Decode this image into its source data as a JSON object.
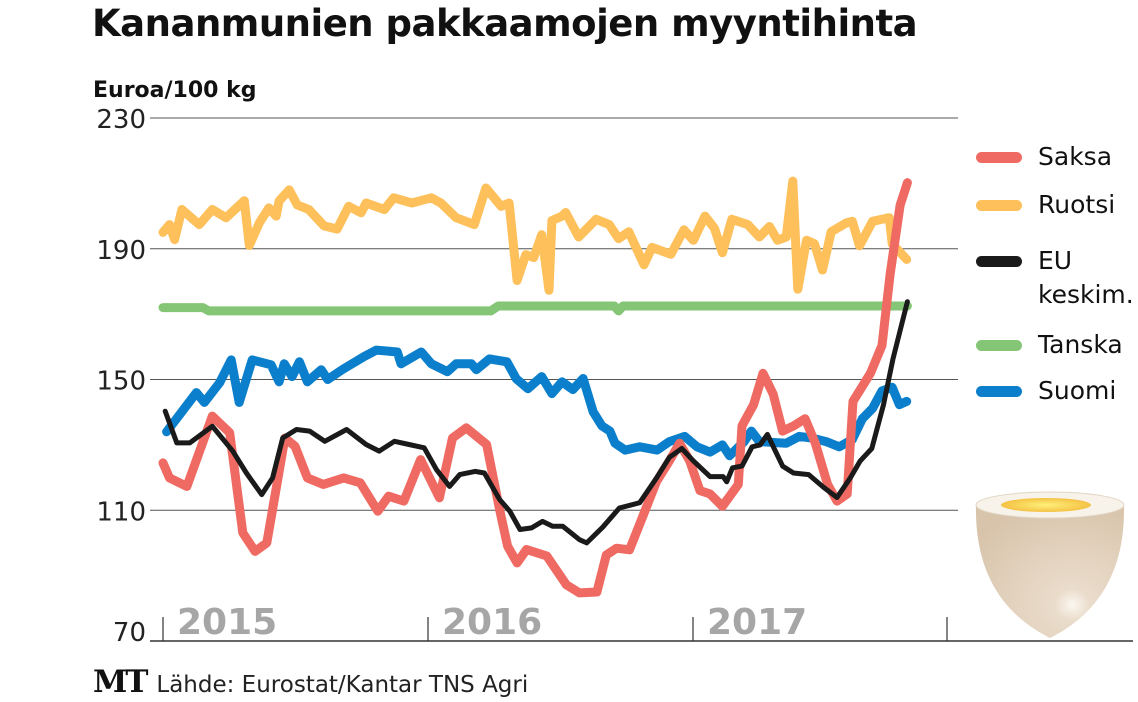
{
  "chart_data": {
    "type": "line",
    "title": "Kananmunien pakkaamojen myyntihinta",
    "ylabel": "Euroa/100 kg",
    "xlabel": "",
    "ylim": [
      70,
      230
    ],
    "yticks": [
      70,
      110,
      150,
      190,
      230
    ],
    "xlim": [
      "2015-01-01",
      "2018-01-01"
    ],
    "xtick_labels": [
      "2015",
      "2016",
      "2017"
    ],
    "grid": "horizontal",
    "legend_position": "right",
    "source": "Lähde: Eurostat/Kantar TNS Agri",
    "logo": "MT",
    "series": [
      {
        "name": "Tanska",
        "color": "#84c675",
        "points": [
          [
            "2015-01-01",
            172
          ],
          [
            "2015-02-25",
            172
          ],
          [
            "2015-03-05",
            171
          ],
          [
            "2016-03-28",
            171
          ],
          [
            "2016-04-07",
            172.5
          ],
          [
            "2016-09-14",
            172.5
          ],
          [
            "2016-09-20",
            171
          ],
          [
            "2016-09-26",
            172.5
          ],
          [
            "2017-10-23",
            172.5
          ]
        ]
      },
      {
        "name": "Ruotsi",
        "color": "#fdc05a",
        "points": [
          [
            "2015-01-01",
            195
          ],
          [
            "2015-01-10",
            197.4
          ],
          [
            "2015-01-17",
            192.8
          ],
          [
            "2015-01-27",
            202
          ],
          [
            "2015-02-20",
            197.4
          ],
          [
            "2015-03-10",
            202
          ],
          [
            "2015-03-29",
            199.5
          ],
          [
            "2015-04-23",
            204.7
          ],
          [
            "2015-04-30",
            191
          ],
          [
            "2015-05-14",
            198
          ],
          [
            "2015-05-27",
            202.5
          ],
          [
            "2015-06-06",
            200
          ],
          [
            "2015-06-10",
            204.6
          ],
          [
            "2015-06-24",
            208
          ],
          [
            "2015-07-05",
            203.4
          ],
          [
            "2015-07-21",
            202
          ],
          [
            "2015-08-11",
            197
          ],
          [
            "2015-08-29",
            196
          ],
          [
            "2015-09-14",
            203
          ],
          [
            "2015-10-01",
            201
          ],
          [
            "2015-10-08",
            204
          ],
          [
            "2015-11-02",
            202
          ],
          [
            "2015-11-15",
            205.6
          ],
          [
            "2015-12-10",
            204
          ],
          [
            "2016-01-06",
            205.6
          ],
          [
            "2016-01-19",
            204
          ],
          [
            "2016-02-09",
            199.5
          ],
          [
            "2016-03-05",
            197.4
          ],
          [
            "2016-03-21",
            208.6
          ],
          [
            "2016-04-11",
            203
          ],
          [
            "2016-04-22",
            204
          ],
          [
            "2016-05-03",
            180.3
          ],
          [
            "2016-05-15",
            188.2
          ],
          [
            "2016-05-26",
            187.3
          ],
          [
            "2016-06-06",
            194.3
          ],
          [
            "2016-06-16",
            177.3
          ],
          [
            "2016-06-20",
            198.6
          ],
          [
            "2016-07-04",
            200
          ],
          [
            "2016-07-09",
            201.1
          ],
          [
            "2016-07-27",
            193.6
          ],
          [
            "2016-08-20",
            199
          ],
          [
            "2016-09-07",
            197.4
          ],
          [
            "2016-09-20",
            193.1
          ],
          [
            "2016-10-04",
            195.2
          ],
          [
            "2016-10-25",
            185.1
          ],
          [
            "2016-11-05",
            190.4
          ],
          [
            "2016-12-01",
            188.3
          ],
          [
            "2016-12-19",
            195.8
          ],
          [
            "2017-01-01",
            192.6
          ],
          [
            "2017-01-17",
            200
          ],
          [
            "2017-01-30",
            196.3
          ],
          [
            "2017-02-10",
            188.8
          ],
          [
            "2017-02-23",
            199
          ],
          [
            "2017-03-17",
            197.4
          ],
          [
            "2017-04-02",
            193.6
          ],
          [
            "2017-04-16",
            196.8
          ],
          [
            "2017-04-27",
            192.6
          ],
          [
            "2017-05-09",
            193.6
          ],
          [
            "2017-05-18",
            210.7
          ],
          [
            "2017-05-25",
            177.6
          ],
          [
            "2017-06-06",
            192.6
          ],
          [
            "2017-06-17",
            191.5
          ],
          [
            "2017-06-28",
            183.5
          ],
          [
            "2017-07-10",
            195.2
          ],
          [
            "2017-07-31",
            197.9
          ],
          [
            "2017-08-08",
            198.4
          ],
          [
            "2017-08-18",
            190.9
          ],
          [
            "2017-09-05",
            198.4
          ],
          [
            "2017-09-28",
            199.5
          ],
          [
            "2017-10-02",
            191.5
          ],
          [
            "2017-10-22",
            186.7
          ]
        ]
      },
      {
        "name": "Suomi",
        "color": "#0b7fcc",
        "points": [
          [
            "2015-01-06",
            134
          ],
          [
            "2015-02-16",
            146
          ],
          [
            "2015-02-27",
            143
          ],
          [
            "2015-03-20",
            149
          ],
          [
            "2015-04-05",
            156
          ],
          [
            "2015-04-16",
            143
          ],
          [
            "2015-05-04",
            156
          ],
          [
            "2015-05-30",
            154.5
          ],
          [
            "2015-06-10",
            149.3
          ],
          [
            "2015-06-17",
            154.8
          ],
          [
            "2015-06-28",
            150.9
          ],
          [
            "2015-07-08",
            155.4
          ],
          [
            "2015-07-19",
            149.3
          ],
          [
            "2015-08-07",
            153
          ],
          [
            "2015-08-16",
            150
          ],
          [
            "2015-09-05",
            153
          ],
          [
            "2015-10-05",
            157
          ],
          [
            "2015-10-22",
            159
          ],
          [
            "2015-11-20",
            158.4
          ],
          [
            "2015-11-25",
            154.8
          ],
          [
            "2015-12-23",
            158.4
          ],
          [
            "2016-01-06",
            154.8
          ],
          [
            "2016-01-28",
            152.4
          ],
          [
            "2016-02-09",
            154.8
          ],
          [
            "2016-03-01",
            154.8
          ],
          [
            "2016-03-08",
            153
          ],
          [
            "2016-03-26",
            156.3
          ],
          [
            "2016-04-19",
            155.4
          ],
          [
            "2016-05-02",
            150.2
          ],
          [
            "2016-05-18",
            147.2
          ],
          [
            "2016-06-06",
            150.9
          ],
          [
            "2016-06-20",
            145.7
          ],
          [
            "2016-07-04",
            149.3
          ],
          [
            "2016-07-19",
            146.9
          ],
          [
            "2016-08-02",
            150.3
          ],
          [
            "2016-08-16",
            140.1
          ],
          [
            "2016-08-28",
            135.8
          ],
          [
            "2016-09-08",
            134.2
          ],
          [
            "2016-09-15",
            130.5
          ],
          [
            "2016-09-29",
            128.4
          ],
          [
            "2016-10-19",
            129.4
          ],
          [
            "2016-11-12",
            128.4
          ],
          [
            "2016-11-29",
            131
          ],
          [
            "2016-12-20",
            132.6
          ],
          [
            "2017-01-06",
            129.4
          ],
          [
            "2017-01-24",
            127.8
          ],
          [
            "2017-02-10",
            130
          ],
          [
            "2017-02-20",
            126.7
          ],
          [
            "2017-03-12",
            131
          ],
          [
            "2017-03-22",
            134.2
          ],
          [
            "2017-04-02",
            131
          ],
          [
            "2017-05-09",
            130.5
          ],
          [
            "2017-05-27",
            132.6
          ],
          [
            "2017-06-13",
            132.1
          ],
          [
            "2017-07-03",
            131
          ],
          [
            "2017-07-21",
            129.4
          ],
          [
            "2017-08-08",
            131.6
          ],
          [
            "2017-08-22",
            138
          ],
          [
            "2017-09-05",
            141.2
          ],
          [
            "2017-09-18",
            146.5
          ],
          [
            "2017-10-02",
            147.6
          ],
          [
            "2017-10-12",
            142.3
          ],
          [
            "2017-10-22",
            143.3
          ]
        ]
      },
      {
        "name": "Saksa",
        "color": "#ef6a62",
        "points": [
          [
            "2015-01-01",
            124.5
          ],
          [
            "2015-01-10",
            119.9
          ],
          [
            "2015-02-03",
            117.3
          ],
          [
            "2015-03-10",
            138.8
          ],
          [
            "2015-04-03",
            133.7
          ],
          [
            "2015-04-21",
            103.1
          ],
          [
            "2015-05-08",
            97.4
          ],
          [
            "2015-05-24",
            100
          ],
          [
            "2015-06-18",
            132.1
          ],
          [
            "2015-07-02",
            129.6
          ],
          [
            "2015-07-19",
            119.9
          ],
          [
            "2015-08-10",
            117.9
          ],
          [
            "2015-09-07",
            119.9
          ],
          [
            "2015-09-30",
            118.4
          ],
          [
            "2015-10-24",
            109.7
          ],
          [
            "2015-11-08",
            114.3
          ],
          [
            "2015-11-29",
            112.8
          ],
          [
            "2015-12-22",
            125.5
          ],
          [
            "2016-01-17",
            113.8
          ],
          [
            "2016-02-04",
            132.1
          ],
          [
            "2016-02-23",
            135.2
          ],
          [
            "2016-03-22",
            130.1
          ],
          [
            "2016-04-09",
            110.2
          ],
          [
            "2016-04-20",
            99
          ],
          [
            "2016-05-03",
            93.9
          ],
          [
            "2016-05-16",
            98
          ],
          [
            "2016-06-13",
            96
          ],
          [
            "2016-07-10",
            87.2
          ],
          [
            "2016-07-28",
            84.7
          ],
          [
            "2016-08-21",
            85
          ],
          [
            "2016-09-03",
            96.3
          ],
          [
            "2016-09-17",
            98.4
          ],
          [
            "2016-10-05",
            97.9
          ],
          [
            "2016-10-23",
            108
          ],
          [
            "2016-11-11",
            118.7
          ],
          [
            "2016-11-29",
            125.1
          ],
          [
            "2016-12-13",
            130.5
          ],
          [
            "2016-12-27",
            125.1
          ],
          [
            "2017-01-10",
            116
          ],
          [
            "2017-01-24",
            115
          ],
          [
            "2017-02-10",
            111.2
          ],
          [
            "2017-03-04",
            117.9
          ],
          [
            "2017-03-09",
            135.8
          ],
          [
            "2017-03-25",
            142.3
          ],
          [
            "2017-04-07",
            151.9
          ],
          [
            "2017-04-21",
            145.5
          ],
          [
            "2017-05-04",
            134.2
          ],
          [
            "2017-05-19",
            135.8
          ],
          [
            "2017-06-04",
            138
          ],
          [
            "2017-06-18",
            130.5
          ],
          [
            "2017-07-05",
            117.9
          ],
          [
            "2017-07-18",
            112.8
          ],
          [
            "2017-08-01",
            115
          ],
          [
            "2017-08-09",
            143.3
          ],
          [
            "2017-09-02",
            151.9
          ],
          [
            "2017-09-18",
            160.4
          ],
          [
            "2017-09-29",
            181.9
          ],
          [
            "2017-10-13",
            203.3
          ],
          [
            "2017-10-23",
            210.2
          ]
        ]
      },
      {
        "name": "EU keskim.",
        "color": "#1a1a1a",
        "points": [
          [
            "2015-01-04",
            140.3
          ],
          [
            "2015-01-20",
            130.6
          ],
          [
            "2015-02-07",
            130.6
          ],
          [
            "2015-03-10",
            135.7
          ],
          [
            "2015-04-07",
            128.1
          ],
          [
            "2015-04-26",
            121.4
          ],
          [
            "2015-05-17",
            114.8
          ],
          [
            "2015-06-01",
            119.9
          ],
          [
            "2015-06-15",
            132.1
          ],
          [
            "2015-07-04",
            134.7
          ],
          [
            "2015-07-22",
            134.2
          ],
          [
            "2015-08-12",
            131.1
          ],
          [
            "2015-09-11",
            134.7
          ],
          [
            "2015-10-08",
            130.1
          ],
          [
            "2015-10-26",
            128.1
          ],
          [
            "2015-11-16",
            131.1
          ],
          [
            "2015-12-06",
            130.1
          ],
          [
            "2015-12-27",
            129.1
          ],
          [
            "2016-01-13",
            122.4
          ],
          [
            "2016-01-31",
            117.3
          ],
          [
            "2016-02-14",
            120.9
          ],
          [
            "2016-03-06",
            121.9
          ],
          [
            "2016-03-19",
            121.4
          ],
          [
            "2016-04-09",
            113.3
          ],
          [
            "2016-04-23",
            109.7
          ],
          [
            "2016-05-07",
            104.1
          ],
          [
            "2016-05-23",
            104.6
          ],
          [
            "2016-06-07",
            106.6
          ],
          [
            "2016-06-21",
            105.1
          ],
          [
            "2016-07-05",
            105.1
          ],
          [
            "2016-07-28",
            101
          ],
          [
            "2016-08-07",
            100
          ],
          [
            "2016-08-29",
            104.8
          ],
          [
            "2016-09-21",
            110.7
          ],
          [
            "2016-10-19",
            112.3
          ],
          [
            "2016-11-11",
            119.8
          ],
          [
            "2016-11-29",
            126.2
          ],
          [
            "2016-12-16",
            128.9
          ],
          [
            "2017-01-01",
            125.1
          ],
          [
            "2017-01-24",
            120.3
          ],
          [
            "2017-02-11",
            120.3
          ],
          [
            "2017-02-16",
            118.7
          ],
          [
            "2017-02-24",
            123
          ],
          [
            "2017-03-09",
            123.5
          ],
          [
            "2017-03-23",
            129.4
          ],
          [
            "2017-04-03",
            130
          ],
          [
            "2017-04-13",
            133.2
          ],
          [
            "2017-05-04",
            123.5
          ],
          [
            "2017-05-19",
            121.4
          ],
          [
            "2017-06-09",
            120.9
          ],
          [
            "2017-06-29",
            117.1
          ],
          [
            "2017-07-18",
            113.9
          ],
          [
            "2017-08-05",
            119.8
          ],
          [
            "2017-08-19",
            125.1
          ],
          [
            "2017-09-04",
            128.9
          ],
          [
            "2017-09-20",
            142.3
          ],
          [
            "2017-10-03",
            156.2
          ],
          [
            "2017-10-23",
            173.8
          ]
        ]
      }
    ],
    "legend": [
      {
        "label": "Saksa",
        "color": "#ef6a62"
      },
      {
        "label": "Ruotsi",
        "color": "#fdc05a"
      },
      {
        "label": "EU keskim.",
        "color": "#1a1a1a"
      },
      {
        "label": "Tanska",
        "color": "#84c675"
      },
      {
        "label": "Suomi",
        "color": "#0b7fcc"
      }
    ],
    "decoration_icon": "boiled-egg-icon"
  }
}
